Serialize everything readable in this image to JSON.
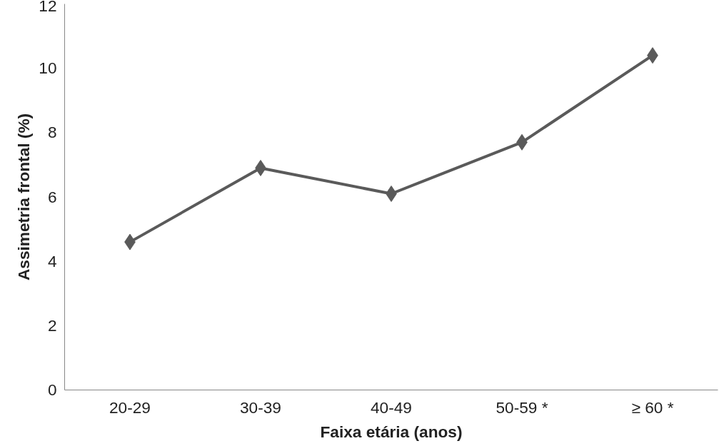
{
  "chart_data": {
    "type": "line",
    "xlabel": "Faixa etária (anos)",
    "ylabel": "Assimetria frontal (%)",
    "categories": [
      "20-29",
      "30-39",
      "40-49",
      "50-59 *",
      "≥ 60 *"
    ],
    "series": [
      {
        "color": "#5a5a5a",
        "values": [
          4.6,
          6.9,
          6.1,
          7.7,
          10.4
        ]
      }
    ],
    "ylim": [
      0,
      12
    ],
    "yticks": [
      0,
      2,
      4,
      6,
      8,
      10,
      12
    ],
    "grid": false,
    "marker": "diamond",
    "line_style": "solid"
  }
}
